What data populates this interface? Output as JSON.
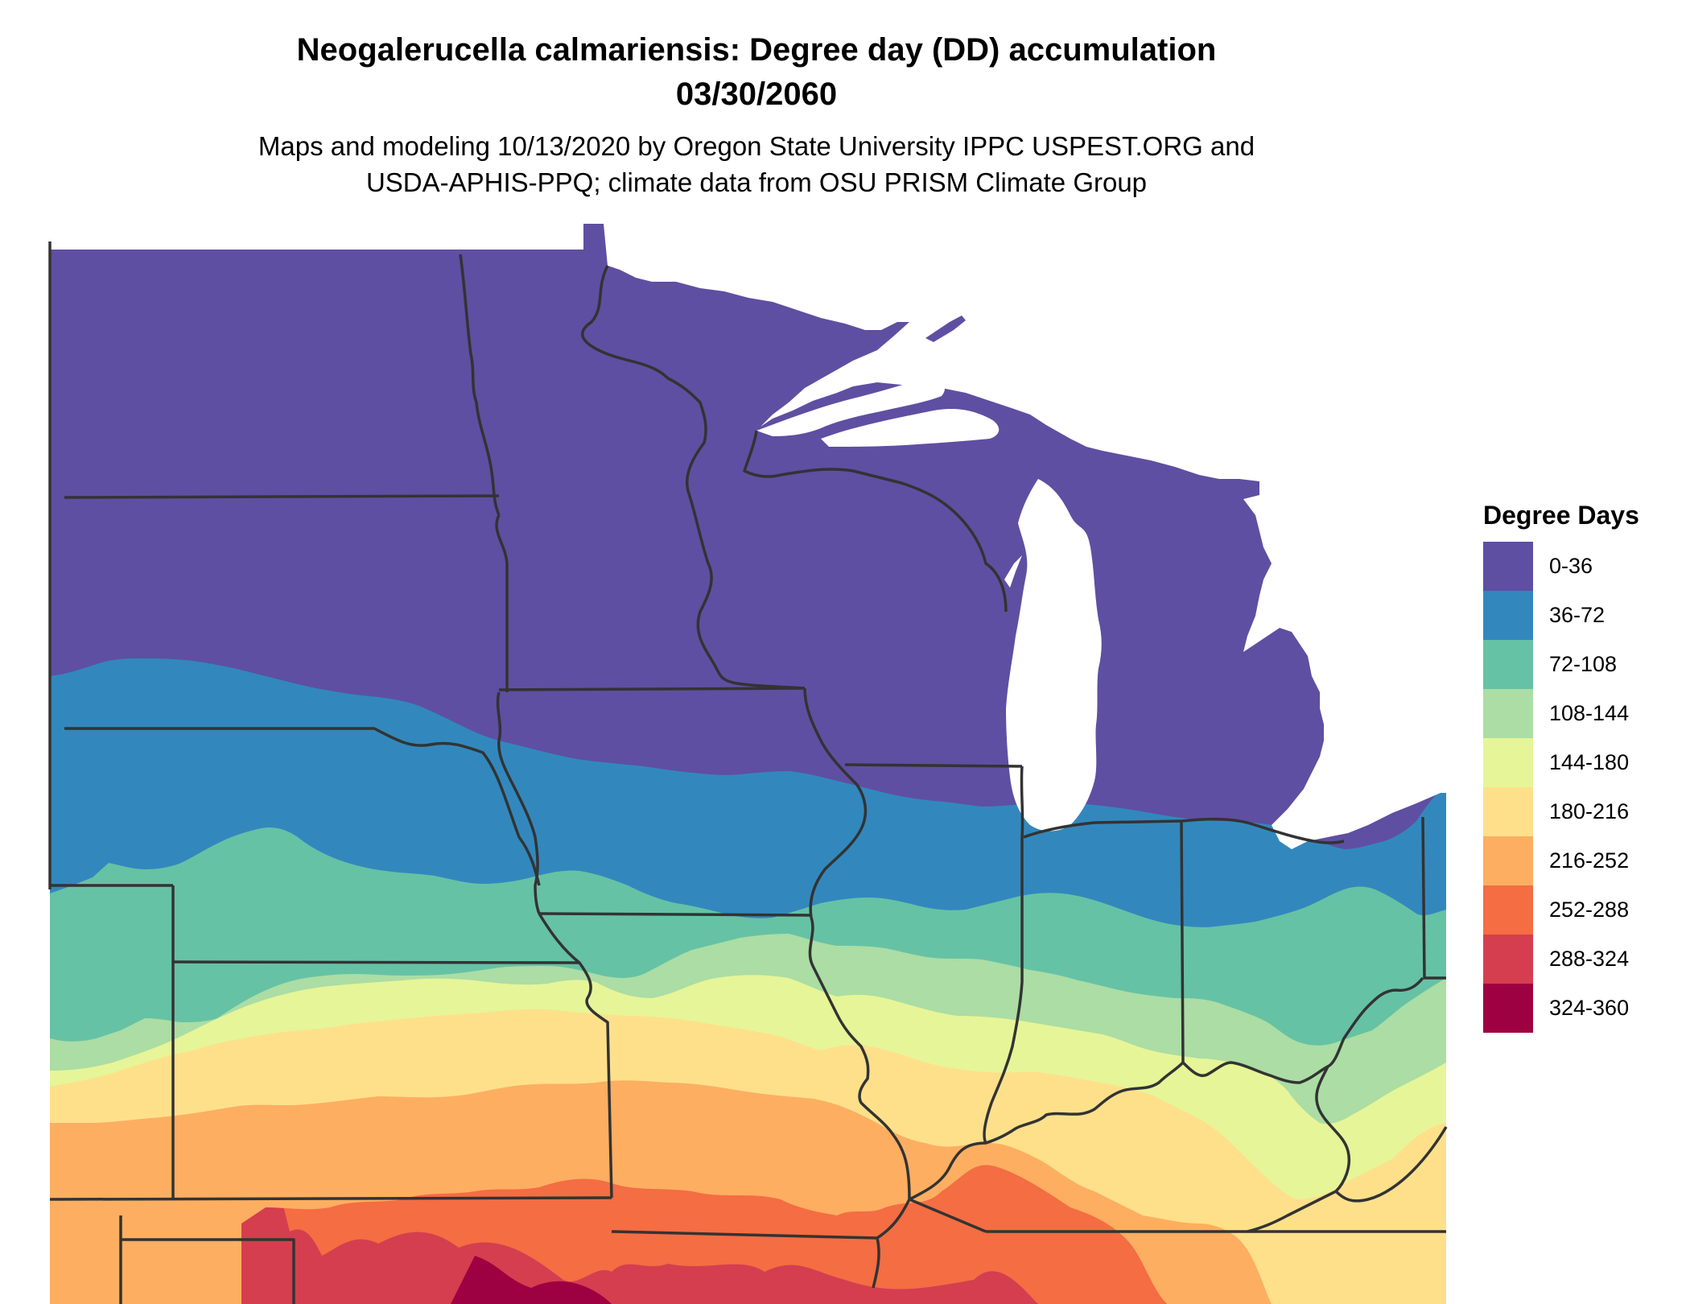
{
  "map": {
    "title_line1": "Neogalerucella calmariensis: Degree day (DD) accumulation",
    "title_line2": "03/30/2060",
    "subtitle_line1": "Maps and modeling 10/13/2020 by Oregon State University IPPC USPEST.ORG and",
    "subtitle_line2": "USDA-APHIS-PPQ; climate data from OSU PRISM Climate Group"
  },
  "legend": {
    "title": "Degree Days",
    "items": [
      {
        "label": "0-36",
        "color": "#5e4fa2"
      },
      {
        "label": "36-72",
        "color": "#3288bd"
      },
      {
        "label": "72-108",
        "color": "#66c2a5"
      },
      {
        "label": "108-144",
        "color": "#abdda4"
      },
      {
        "label": "144-180",
        "color": "#e6f598"
      },
      {
        "label": "180-216",
        "color": "#fee08b"
      },
      {
        "label": "216-252",
        "color": "#fdae61"
      },
      {
        "label": "252-288",
        "color": "#f46d43"
      },
      {
        "label": "288-324",
        "color": "#d53e4f"
      },
      {
        "label": "324-360",
        "color": "#9e0142"
      }
    ]
  },
  "colors": {
    "border": "#333333",
    "water": "#ffffff"
  }
}
